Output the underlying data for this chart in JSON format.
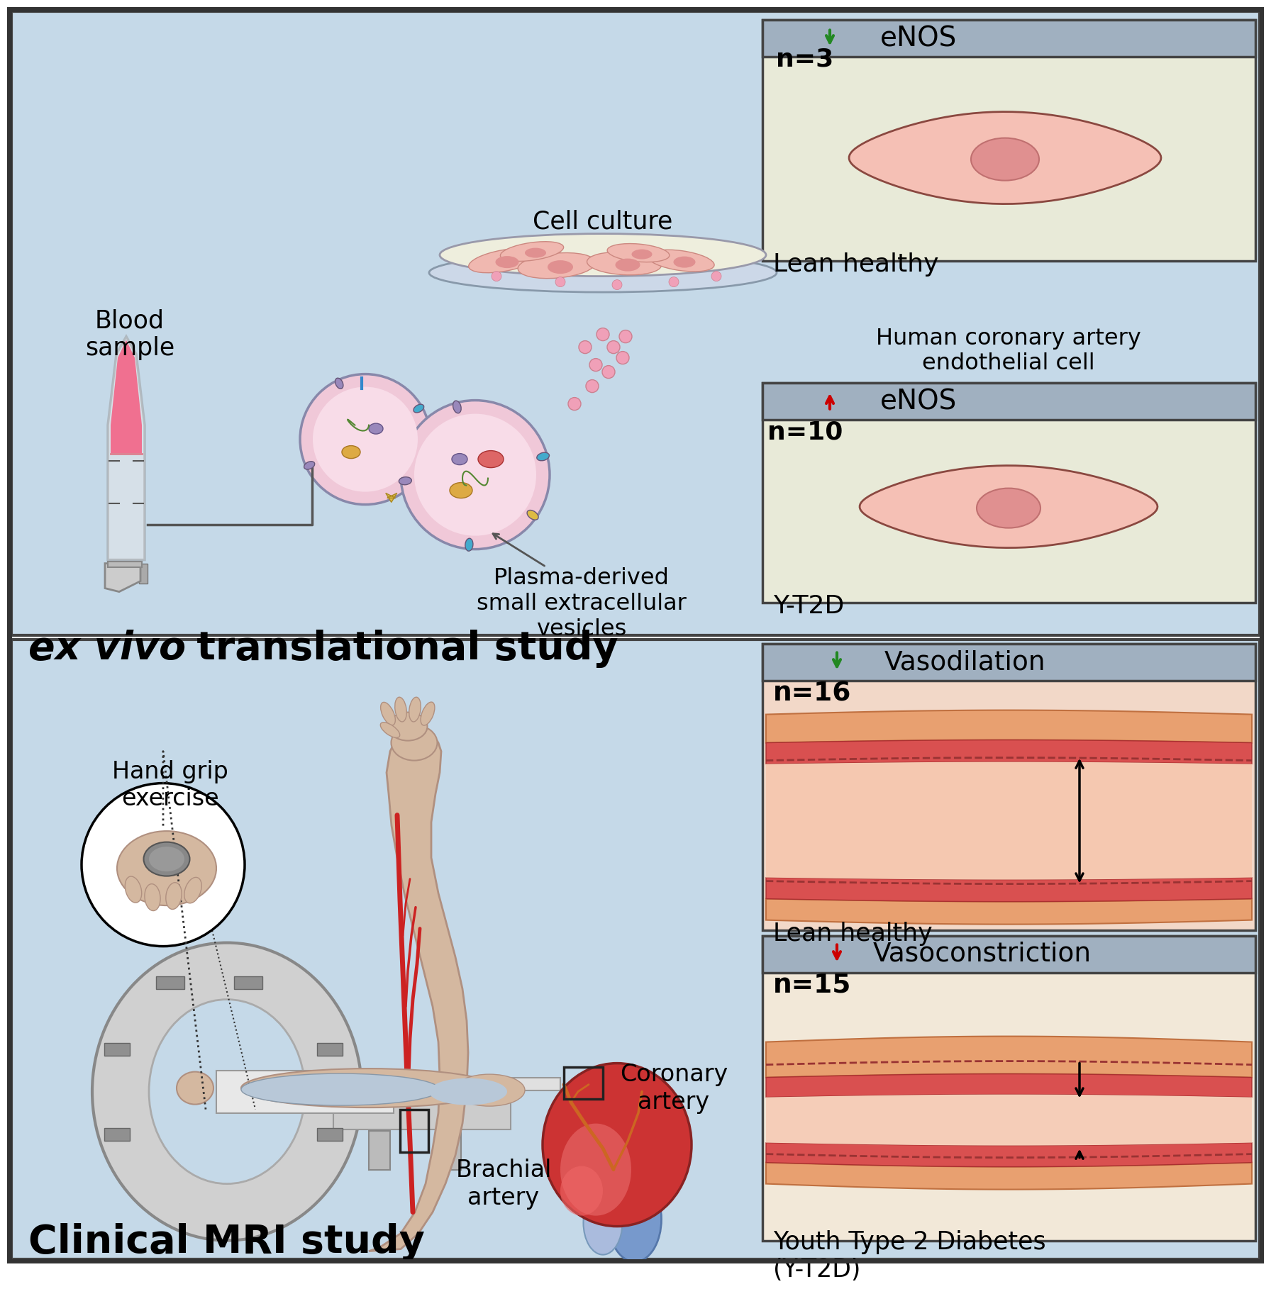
{
  "bg_color": "#c5d9e8",
  "bg_color2": "#c5d9e8",
  "title_clinical": "Clinical MRI study",
  "title_exvivo_italic": "ex vivo",
  "title_exvivo_normal": " translational study",
  "label_brachial": "Brachial\nartery",
  "label_coronary": "Coronary\nartery",
  "label_handgrip": "Hand grip\nexercise",
  "label_blood": "Blood\nsample",
  "label_plasma": "Plasma-derived\nsmall extracellular\nvesicles",
  "label_cellculture": "Cell culture",
  "label_yt2d_title": "Youth Type 2 Diabetes\n(Y-T2D)",
  "label_lean_title": "Lean healthy",
  "label_n15": "n=15",
  "label_n16": "n=16",
  "label_vasoconstriction": "Vasoconstriction",
  "label_vasodilation": "Vasodilation",
  "label_yt2d_bottom": "Y-T2D",
  "label_lean_bottom": "Lean healthy",
  "label_n10": "n=10",
  "label_n3": "n=3",
  "label_enos_down": "eNOS",
  "label_enos_up": "eNOS",
  "label_hcaec": "Human coronary artery\nendothelial cell",
  "red_arrow": "#cc0000",
  "green_arrow": "#228822",
  "black_arrow": "#000000",
  "fig_width": 17.72,
  "fig_height": 17.72,
  "dpi": 100
}
